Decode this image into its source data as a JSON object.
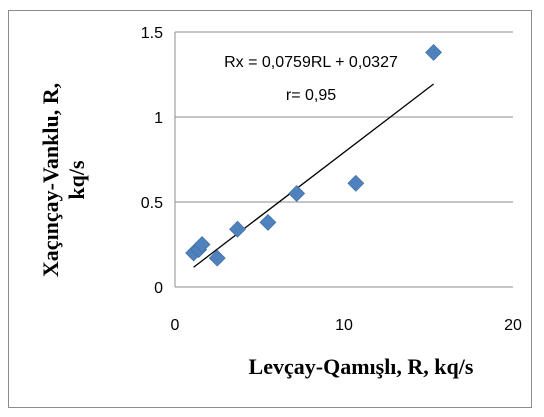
{
  "chart_data": {
    "type": "scatter",
    "title": "",
    "xlabel": "Levçay-Qamışlı, R, kq/s",
    "ylabel_line1": "Xaçınçay-Vanklu, R,",
    "ylabel_line2": "kq/s",
    "xlim": [
      0,
      20
    ],
    "ylim": [
      0,
      1.5
    ],
    "x_ticks": [
      "0",
      "10",
      "20"
    ],
    "y_ticks": [
      "0",
      "0.5",
      "1",
      "1.5"
    ],
    "grid": "horizontal",
    "legend": "none",
    "marker_color": "#4f81bd",
    "trendline_color": "#000000",
    "points": [
      {
        "x": 1.1,
        "y": 0.2
      },
      {
        "x": 1.4,
        "y": 0.22
      },
      {
        "x": 1.6,
        "y": 0.25
      },
      {
        "x": 2.5,
        "y": 0.17
      },
      {
        "x": 3.7,
        "y": 0.34
      },
      {
        "x": 5.5,
        "y": 0.38
      },
      {
        "x": 7.2,
        "y": 0.55
      },
      {
        "x": 10.7,
        "y": 0.61
      },
      {
        "x": 15.3,
        "y": 1.38
      }
    ],
    "trendline": {
      "slope": 0.0759,
      "intercept": 0.0327,
      "x_start": 1.1,
      "x_end": 15.3
    },
    "annotations": {
      "equation": "Rx = 0,0759RL + 0,0327",
      "r_value": "r= 0,95"
    }
  }
}
